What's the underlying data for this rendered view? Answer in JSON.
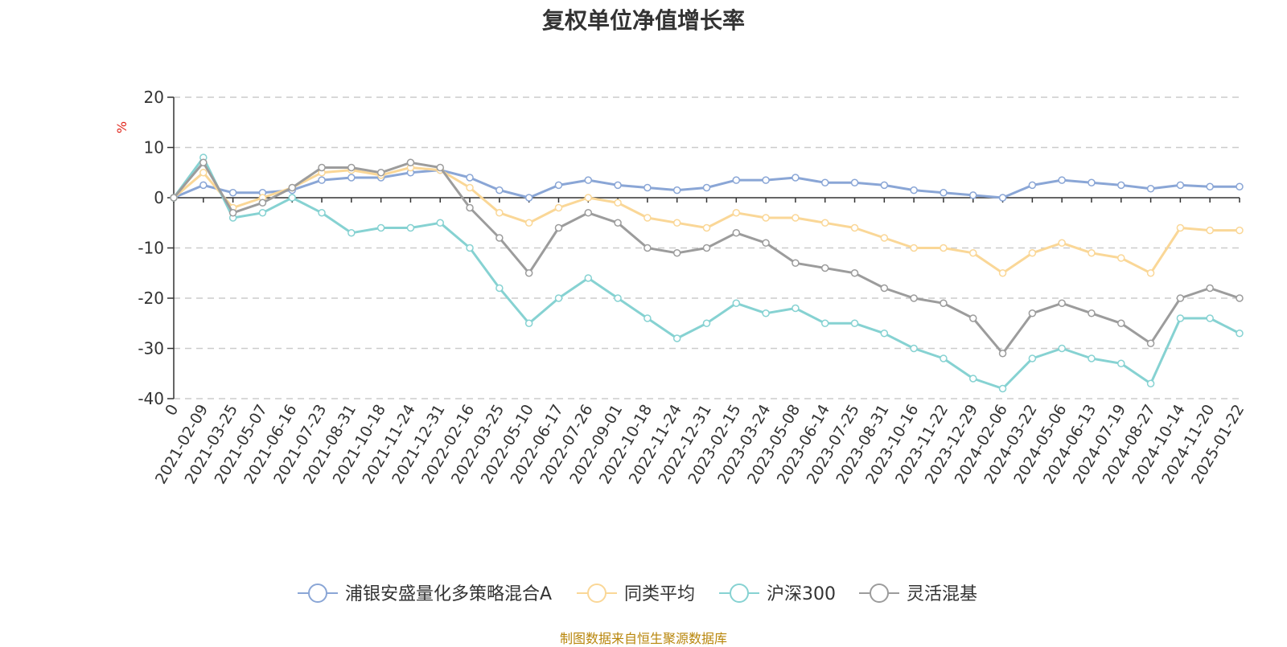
{
  "title": "复权单位净值增长率",
  "source": "制图数据来自恒生聚源数据库",
  "chart_data": {
    "type": "line",
    "title": "复权单位净值增长率",
    "ylabel": "%",
    "xlabel": "",
    "ylim": [
      -40,
      20
    ],
    "yticks": [
      "20",
      "10",
      "0",
      "-10",
      "-20",
      "-30",
      "-40"
    ],
    "yticks_values": [
      20,
      10,
      0,
      -10,
      -20,
      -30,
      -40
    ],
    "grid": true,
    "legend_position": "bottom",
    "x": [
      "0",
      "2021-02-09",
      "2021-03-25",
      "2021-05-07",
      "2021-06-16",
      "2021-07-23",
      "2021-08-31",
      "2021-10-18",
      "2021-11-24",
      "2021-12-31",
      "2022-02-16",
      "2022-03-25",
      "2022-05-10",
      "2022-06-17",
      "2022-07-26",
      "2022-09-01",
      "2022-10-18",
      "2022-11-24",
      "2022-12-31",
      "2023-02-15",
      "2023-03-24",
      "2023-05-08",
      "2023-06-14",
      "2023-07-25",
      "2023-08-31",
      "2023-10-16",
      "2023-11-22",
      "2023-12-29",
      "2024-02-06",
      "2024-03-22",
      "2024-05-06",
      "2024-06-13",
      "2024-07-19",
      "2024-08-27",
      "2024-10-14",
      "2024-11-20",
      "2025-01-22"
    ],
    "series": [
      {
        "name": "浦银安盛量化多策略混合A",
        "color": "#8aa6d6",
        "values": [
          0,
          2.5,
          1,
          1,
          1.5,
          3.5,
          4,
          4,
          5,
          5.5,
          4,
          1.5,
          0,
          2.5,
          3.5,
          2.5,
          2,
          1.5,
          2,
          3.5,
          3.5,
          4,
          3,
          3,
          2.5,
          1.5,
          1,
          0.5,
          0,
          2.5,
          3.5,
          3,
          2.5,
          1.8,
          2.5,
          2.2,
          2.2
        ]
      },
      {
        "name": "同类平均",
        "color": "#fad797",
        "values": [
          0,
          5,
          -2,
          0,
          2,
          5,
          5.5,
          4.5,
          6,
          5.5,
          2,
          -3,
          -5,
          -2,
          0,
          -1,
          -4,
          -5,
          -6,
          -3,
          -4,
          -4,
          -5,
          -6,
          -8,
          -10,
          -10,
          -11,
          -15,
          -11,
          -9,
          -11,
          -12,
          -15,
          -6,
          -6.5,
          -6.5
        ]
      },
      {
        "name": "沪深300",
        "color": "#86d2d2",
        "values": [
          0,
          8,
          -4,
          -3,
          0,
          -3,
          -7,
          -6,
          -6,
          -5,
          -10,
          -18,
          -25,
          -20,
          -16,
          -20,
          -24,
          -28,
          -25,
          -21,
          -23,
          -22,
          -25,
          -25,
          -27,
          -30,
          -32,
          -36,
          -38,
          -32,
          -30,
          -32,
          -33,
          -37,
          -24,
          -24,
          -27
        ]
      },
      {
        "name": "灵活混基",
        "color": "#9c9c9c",
        "values": [
          0,
          7,
          -3,
          -1,
          2,
          6,
          6,
          5,
          7,
          6,
          -2,
          -8,
          -15,
          -6,
          -3,
          -5,
          -10,
          -11,
          -10,
          -7,
          -9,
          -13,
          -14,
          -15,
          -18,
          -20,
          -21,
          -24,
          -31,
          -23,
          -21,
          -23,
          -25,
          -29,
          -20,
          -18,
          -20
        ]
      }
    ]
  }
}
